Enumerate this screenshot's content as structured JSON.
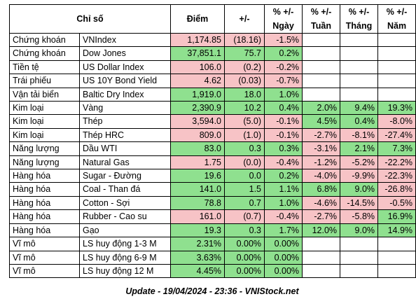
{
  "headers": {
    "index": "Chỉ số",
    "value": "Điểm",
    "change": "+/-",
    "pct_label": "% +/-",
    "day": "Ngày",
    "week": "Tuần",
    "month": "Tháng",
    "year": "Năm"
  },
  "rows": [
    {
      "cat": "Chứng khoán",
      "name": "VNIndex",
      "value": "1,174.85",
      "change": "(18.16)",
      "day": "-1.5%",
      "week": "",
      "month": "",
      "year": ""
    },
    {
      "cat": "Chứng khoán",
      "name": "Dow Jones",
      "value": "37,851.1",
      "change": "75.7",
      "day": "0.2%",
      "week": "",
      "month": "",
      "year": ""
    },
    {
      "cat": "Tiền tệ",
      "name": "US Dollar Index",
      "value": "106.0",
      "change": "(0.2)",
      "day": "-0.2%",
      "week": "",
      "month": "",
      "year": ""
    },
    {
      "cat": "Trái phiếu",
      "name": "US 10Y Bond Yield",
      "value": "4.62",
      "change": "(0.03)",
      "day": "-0.7%",
      "week": "",
      "month": "",
      "year": ""
    },
    {
      "cat": "Vận tải biển",
      "name": "Baltic Dry Index",
      "value": "1,919.0",
      "change": "18.0",
      "day": "1.0%",
      "week": "",
      "month": "",
      "year": ""
    },
    {
      "cat": "Kim loại",
      "name": "Vàng",
      "value": "2,390.9",
      "change": "10.2",
      "day": "0.4%",
      "week": "2.0%",
      "month": "9.4%",
      "year": "19.3%"
    },
    {
      "cat": "Kim loại",
      "name": "Thép",
      "value": "3,594.0",
      "change": "(5.0)",
      "day": "-0.1%",
      "week": "4.5%",
      "month": "0.4%",
      "year": "-8.0%"
    },
    {
      "cat": "Kim loại",
      "name": "Thép HRC",
      "value": "809.0",
      "change": "(1.0)",
      "day": "-0.1%",
      "week": "-2.7%",
      "month": "-8.1%",
      "year": "-27.4%"
    },
    {
      "cat": "Năng lượng",
      "name": "Dầu WTI",
      "value": "83.0",
      "change": "0.3",
      "day": "0.3%",
      "week": "-3.1%",
      "month": "2.1%",
      "year": "7.3%"
    },
    {
      "cat": "Năng lượng",
      "name": "Natural Gas",
      "value": "1.75",
      "change": "(0.0)",
      "day": "-0.4%",
      "week": "-1.2%",
      "month": "-5.2%",
      "year": "-22.2%"
    },
    {
      "cat": "Hàng hóa",
      "name": "Sugar - Đường",
      "value": "19.6",
      "change": "0.0",
      "day": "0.2%",
      "week": "-4.0%",
      "month": "-9.9%",
      "year": "-22.3%"
    },
    {
      "cat": "Hàng hóa",
      "name": "Coal - Than đá",
      "value": "141.0",
      "change": "1.5",
      "day": "1.1%",
      "week": "6.8%",
      "month": "9.0%",
      "year": "-26.8%"
    },
    {
      "cat": "Hàng hóa",
      "name": "Cotton - Sợi",
      "value": "78.8",
      "change": "0.7",
      "day": "1.0%",
      "week": "-4.6%",
      "month": "-14.5%",
      "year": "-0.5%"
    },
    {
      "cat": "Hàng hóa",
      "name": "Rubber - Cao su",
      "value": "161.0",
      "change": "(0.7)",
      "day": "-0.4%",
      "week": "-2.7%",
      "month": "-5.8%",
      "year": "16.9%"
    },
    {
      "cat": "Hàng hóa",
      "name": "Gạo",
      "value": "19.3",
      "change": "0.3",
      "day": "1.7%",
      "week": "12.0%",
      "month": "9.0%",
      "year": "14.9%"
    },
    {
      "cat": "Vĩ mô",
      "name": "LS huy động 1-3 M",
      "value": "2.31%",
      "change": "0.00%",
      "day": "0.00%",
      "week": "",
      "month": "",
      "year": ""
    },
    {
      "cat": "Vĩ mô",
      "name": "LS huy động 6-9 M",
      "value": "3.63%",
      "change": "0.00%",
      "day": "0.00%",
      "week": "",
      "month": "",
      "year": ""
    },
    {
      "cat": "Vĩ mô",
      "name": "LS huy động 12 M",
      "value": "4.45%",
      "change": "0.00%",
      "day": "0.00%",
      "week": "",
      "month": "",
      "year": ""
    }
  ],
  "footer": "Update - 19/04/2024 - 23:36 - VNIStock.net",
  "colors": {
    "positive": "#8fe08f",
    "negative": "#f7c3c6"
  }
}
